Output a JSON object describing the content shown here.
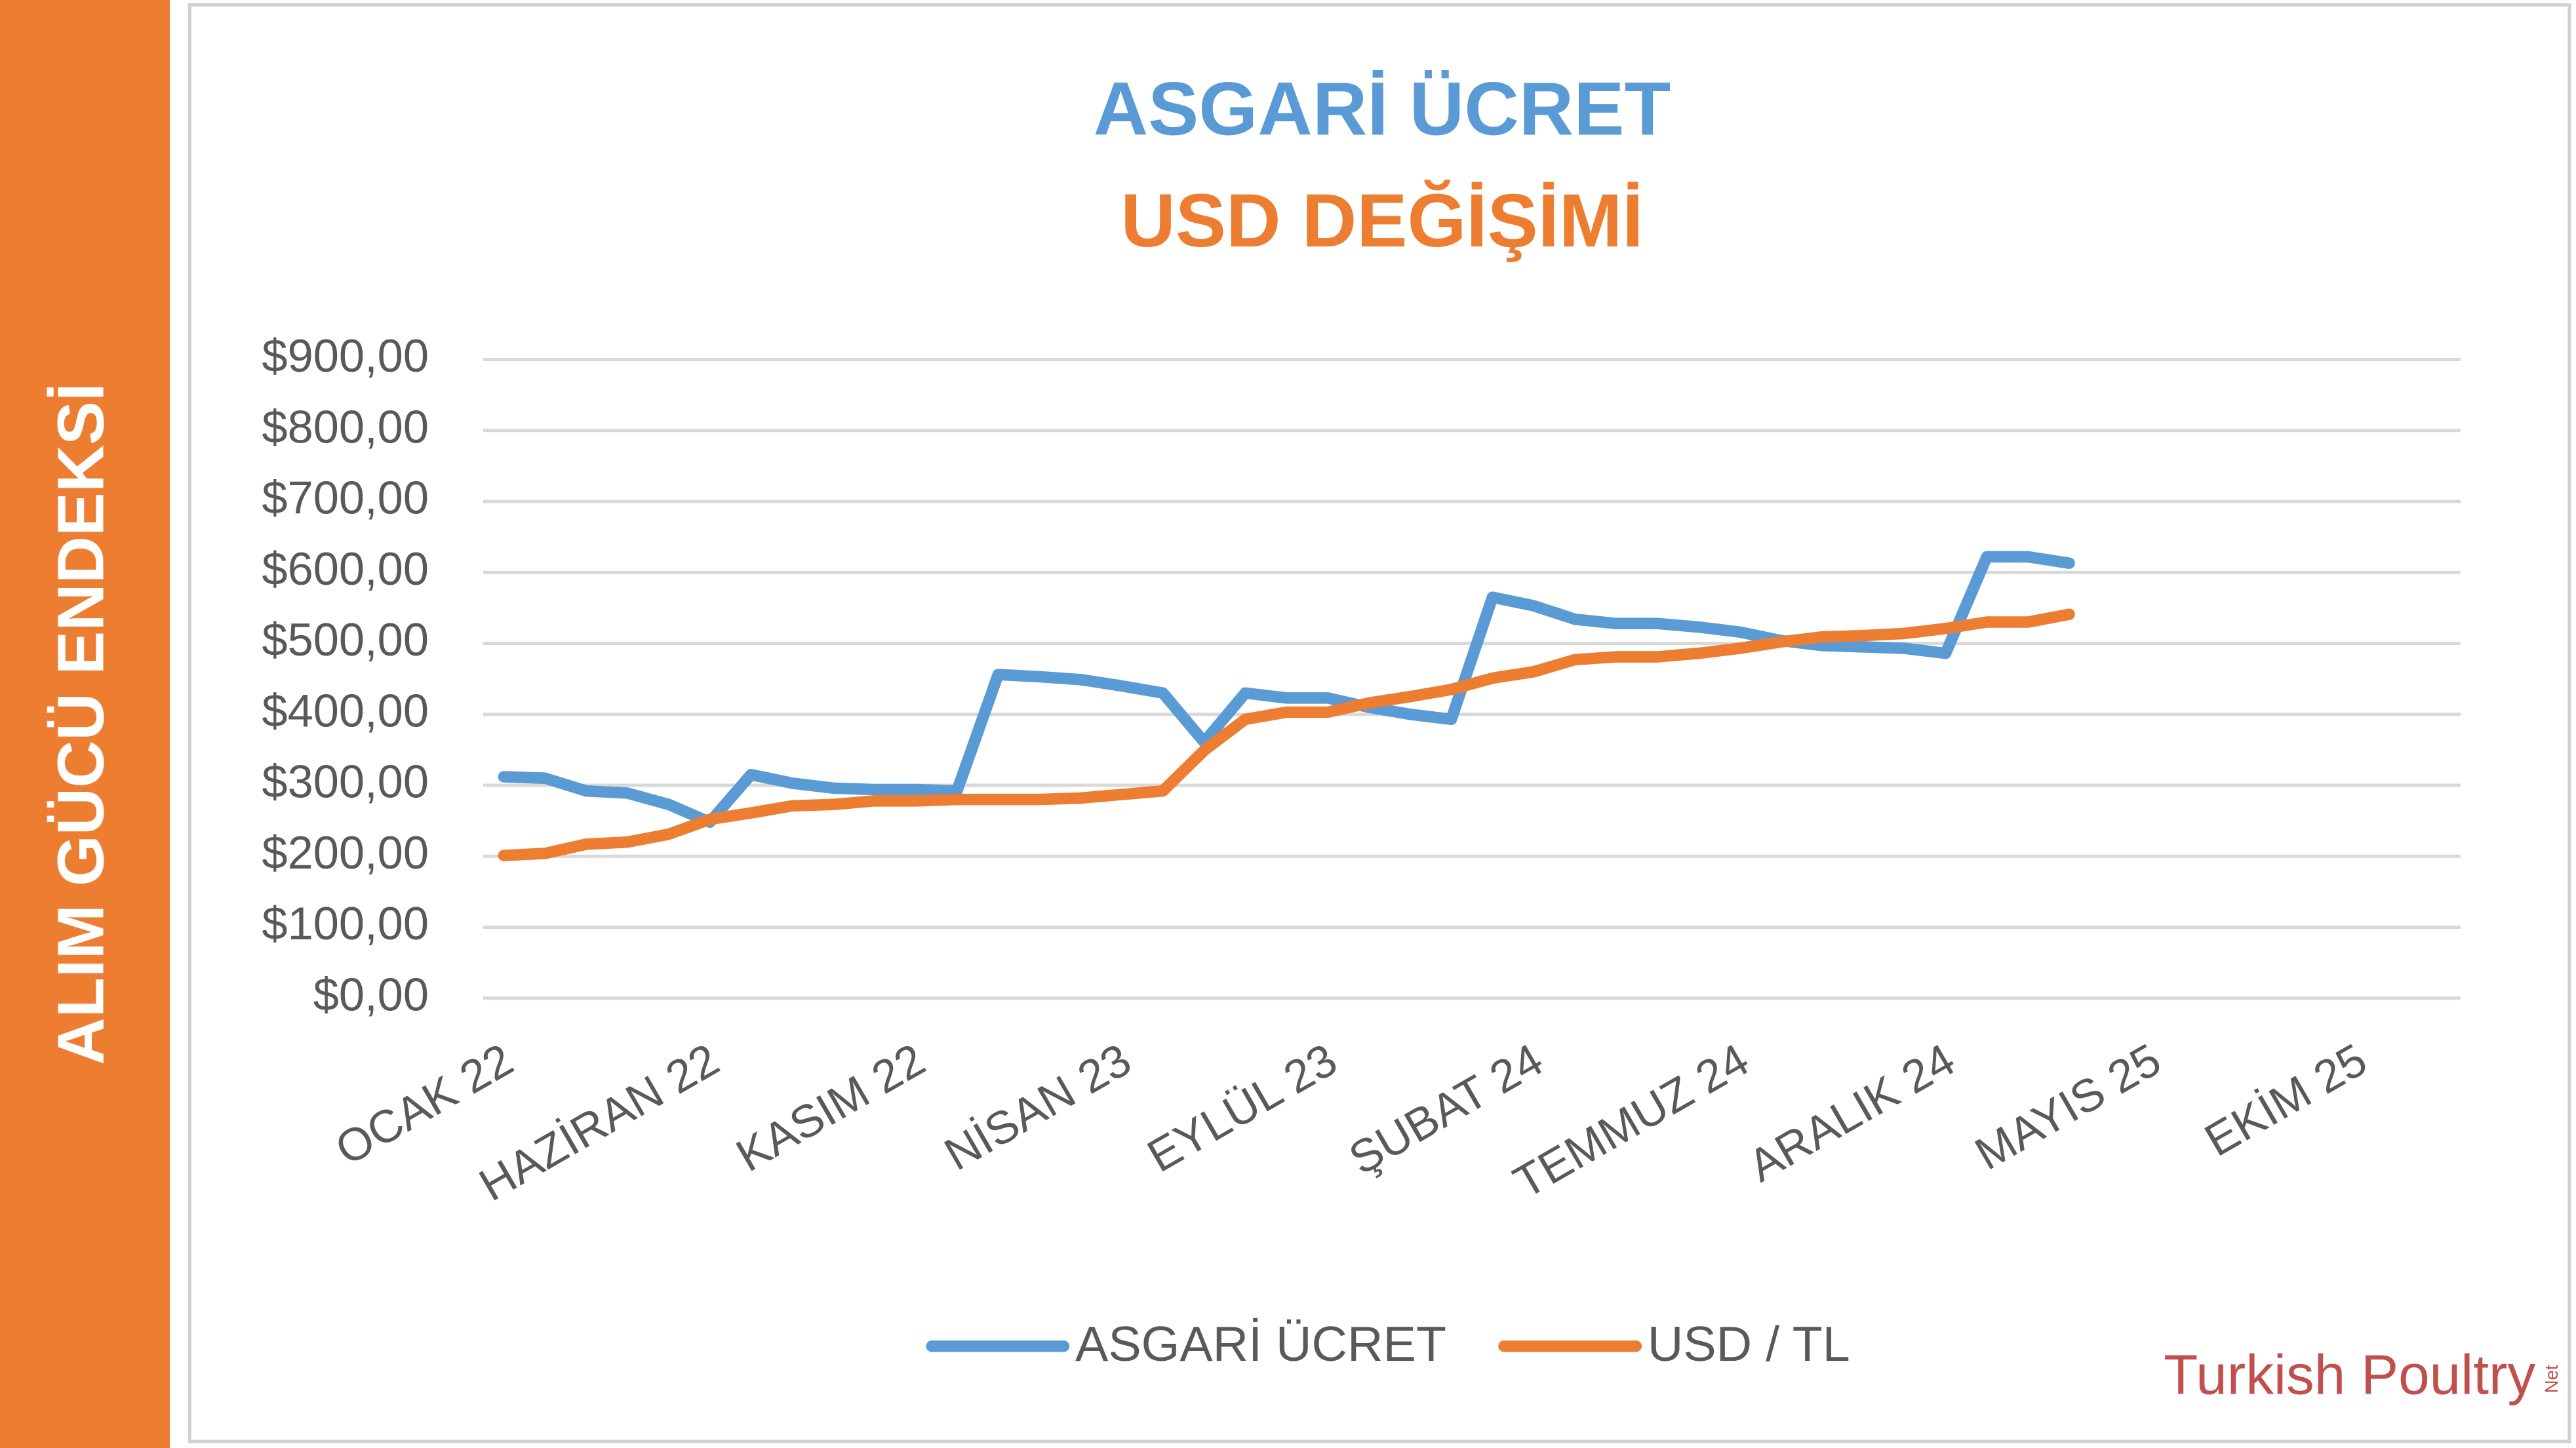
{
  "sidebar": "ALIM GÜCÜ ENDEKSİ",
  "logo": {
    "text": "Turkish Poultry",
    "suffix": "Net"
  },
  "chart_data": {
    "type": "line",
    "title": "ASGARİ ÜCRET",
    "subtitle": "USD DEĞİŞİMİ",
    "categories": [
      "OCAK 22",
      null,
      null,
      null,
      null,
      "HAZİRAN 22",
      null,
      null,
      null,
      null,
      "KASIM 22",
      null,
      null,
      null,
      null,
      "NİSAN 23",
      null,
      null,
      null,
      null,
      "EYLÜL 23",
      null,
      null,
      null,
      null,
      "ŞUBAT 24",
      null,
      null,
      null,
      null,
      "TEMMUZ 24",
      null,
      null,
      null,
      null,
      "ARALIK 24",
      null,
      null,
      null,
      null,
      "MAYIS 25",
      null,
      null,
      null,
      null,
      "EKİM 25",
      null,
      null
    ],
    "series": [
      {
        "name": "ASGARİ ÜCRET",
        "color": "#5B9BD5",
        "values": [
          312,
          310,
          292,
          289,
          273,
          248,
          315,
          303,
          296,
          294,
          294,
          292,
          456,
          453,
          449,
          440,
          430,
          361,
          430,
          423,
          423,
          410,
          400,
          393,
          565,
          553,
          534,
          528,
          528,
          523,
          516,
          504,
          497,
          495,
          493,
          486,
          622,
          622,
          613,
          null,
          null,
          null,
          null,
          null,
          null,
          null,
          null,
          null
        ]
      },
      {
        "name": "USD / TL",
        "color": "#ED7D31",
        "values": [
          201,
          204,
          217,
          220,
          231,
          252,
          261,
          271,
          273,
          278,
          278,
          280,
          280,
          280,
          282,
          287,
          292,
          349,
          393,
          403,
          403,
          416,
          425,
          435,
          451,
          460,
          477,
          481,
          481,
          486,
          493,
          502,
          509,
          511,
          514,
          521,
          530,
          530,
          541,
          null,
          null,
          null,
          null,
          null,
          null,
          null,
          null,
          null
        ]
      }
    ],
    "ylim": [
      0,
      900
    ],
    "yticks": [
      {
        "value": 0,
        "label": "$0,00"
      },
      {
        "value": 100,
        "label": "$100,00"
      },
      {
        "value": 200,
        "label": "$200,00"
      },
      {
        "value": 300,
        "label": "$300,00"
      },
      {
        "value": 400,
        "label": "$400,00"
      },
      {
        "value": 500,
        "label": "$500,00"
      },
      {
        "value": 600,
        "label": "$600,00"
      },
      {
        "value": 700,
        "label": "$700,00"
      },
      {
        "value": 800,
        "label": "$800,00"
      },
      {
        "value": 900,
        "label": "$900,00"
      }
    ],
    "grid": true,
    "legend": "bottom"
  }
}
